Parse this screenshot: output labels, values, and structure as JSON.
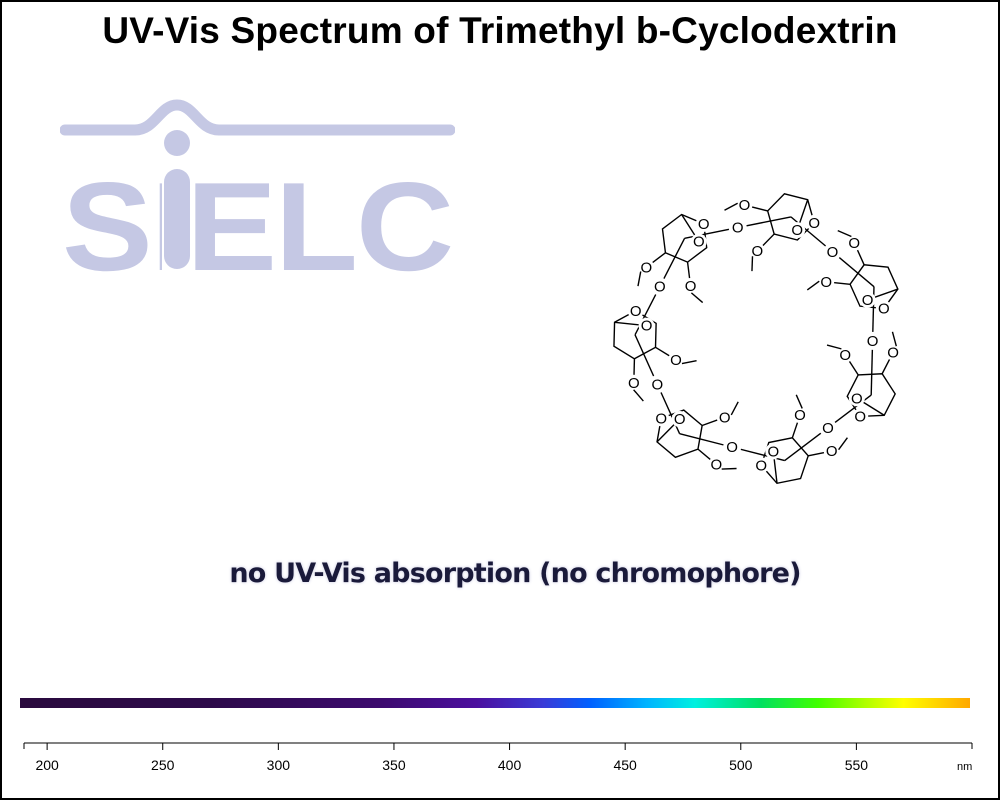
{
  "title": "UV-Vis Spectrum of Trimethyl b-Cyclodextrin",
  "logo_text": "SIELC",
  "note": "no UV-Vis absorption (no chromophore)",
  "colors": {
    "logo": "#c5c8e4",
    "title": "#000000",
    "note": "#1a1a3a"
  },
  "chart_data": {
    "type": "spectrum",
    "title": "UV-Vis Spectrum of Trimethyl b-Cyclodextrin",
    "xlabel": "",
    "unit_label": "nm",
    "xlim": [
      190,
      600
    ],
    "ticks": [
      200,
      250,
      300,
      350,
      400,
      450,
      500,
      550
    ],
    "series": [],
    "annotation": "no UV-Vis absorption (no chromophore)"
  }
}
